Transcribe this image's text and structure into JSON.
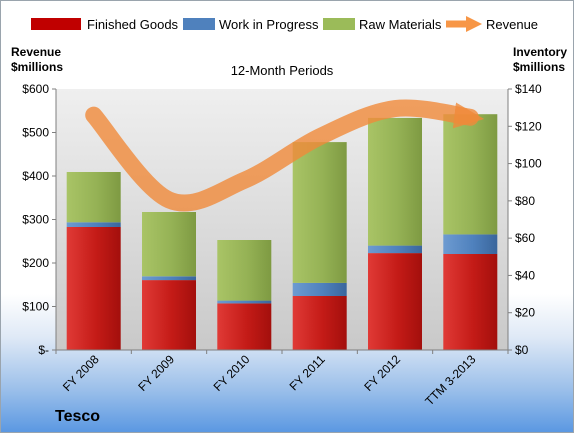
{
  "chart_data": {
    "type": "bar",
    "stacked": true,
    "subtitle": "12-Month Periods",
    "brand": "Tesco",
    "categories": [
      "FY 2008",
      "FY 2009",
      "FY 2010",
      "FY 2011",
      "FY 2012",
      "TTM 3-2013"
    ],
    "left_axis": {
      "label_line1": "Revenue",
      "label_line2": "$millions",
      "range": [
        0,
        600
      ],
      "ticks": [
        "$-",
        "$100",
        "$200",
        "$300",
        "$400",
        "$500",
        "$600"
      ]
    },
    "right_axis": {
      "label_line1": "Inventory",
      "label_line2": "$millions",
      "range": [
        0,
        140
      ],
      "ticks": [
        "$0",
        "$20",
        "$40",
        "$60",
        "$80",
        "$100",
        "$120",
        "$140"
      ]
    },
    "series": [
      {
        "name": "Finished Goods",
        "axis": "right",
        "type": "bar",
        "color": "#c00000",
        "values": [
          66,
          37.5,
          25,
          29,
          52,
          51.5
        ]
      },
      {
        "name": "Work in Progress",
        "axis": "right",
        "type": "bar",
        "color": "#4f81bd",
        "values": [
          2.5,
          2,
          1.5,
          7,
          4,
          10.5
        ]
      },
      {
        "name": "Raw Materials",
        "axis": "right",
        "type": "bar",
        "color": "#9bbb59",
        "values": [
          27,
          34.5,
          32.5,
          75.5,
          68.5,
          64.5
        ]
      },
      {
        "name": "Revenue",
        "axis": "left",
        "type": "line",
        "color": "#f79646",
        "values": [
          540,
          345,
          390,
          490,
          555,
          535
        ]
      }
    ],
    "legend_position": "top",
    "grid": false
  }
}
